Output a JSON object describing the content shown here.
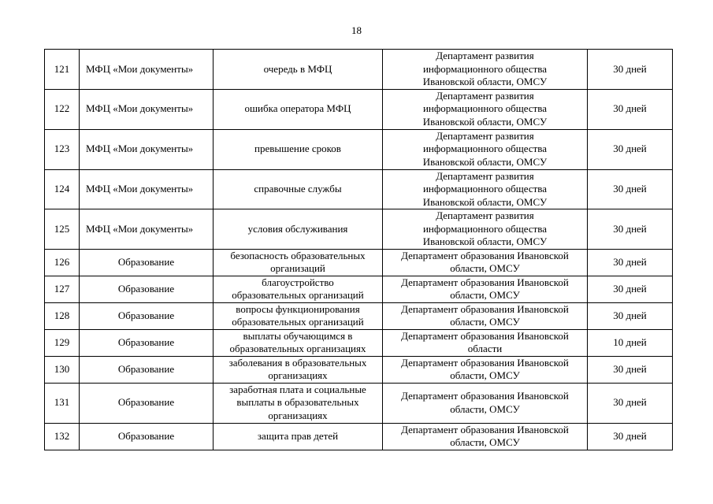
{
  "page_number": "18",
  "table": {
    "rows": [
      [
        "121",
        "МФЦ «Мои документы»",
        "очередь в МФЦ",
        [
          "Департамент развития",
          "информационного общества",
          "Ивановской области, ОМСУ"
        ],
        "30 дней"
      ],
      [
        "122",
        "МФЦ «Мои документы»",
        "ошибка оператора МФЦ",
        [
          "Департамент развития",
          "информационного общества",
          "Ивановской области, ОМСУ"
        ],
        "30 дней"
      ],
      [
        "123",
        "МФЦ «Мои документы»",
        "превышение сроков",
        [
          "Департамент развития",
          "информационного общества",
          "Ивановской области, ОМСУ"
        ],
        "30 дней"
      ],
      [
        "124",
        "МФЦ «Мои документы»",
        "справочные службы",
        [
          "Департамент развития",
          "информационного общества",
          "Ивановской области, ОМСУ"
        ],
        "30 дней"
      ],
      [
        "125",
        "МФЦ «Мои документы»",
        "условия обслуживания",
        [
          "Департамент развития",
          "информационного общества",
          "Ивановской области, ОМСУ"
        ],
        "30 дней"
      ],
      [
        "126",
        "Образование",
        [
          "безопасность образовательных",
          "организаций"
        ],
        [
          "Департамент образования Ивановской",
          "области, ОМСУ"
        ],
        "30 дней"
      ],
      [
        "127",
        "Образование",
        [
          "благоустройство",
          "образовательных организаций"
        ],
        [
          "Департамент образования Ивановской",
          "области, ОМСУ"
        ],
        "30 дней"
      ],
      [
        "128",
        "Образование",
        [
          "вопросы функционирования",
          "образовательных организаций"
        ],
        [
          "Департамент образования Ивановской",
          "области, ОМСУ"
        ],
        "30 дней"
      ],
      [
        "129",
        "Образование",
        [
          "выплаты обучающимся в",
          "образовательных организациях"
        ],
        [
          "Департамент образования Ивановской",
          "области"
        ],
        "10 дней"
      ],
      [
        "130",
        "Образование",
        [
          "заболевания в образовательных",
          "организациях"
        ],
        [
          "Департамент образования Ивановской",
          "области, ОМСУ"
        ],
        "30 дней"
      ],
      [
        "131",
        "Образование",
        [
          "заработная плата и социальные",
          "выплаты в образовательных",
          "организациях"
        ],
        [
          "Департамент образования Ивановской",
          "области, ОМСУ"
        ],
        "30 дней"
      ],
      [
        "132",
        "Образование",
        "защита прав детей",
        [
          "Департамент образования Ивановской",
          "области, ОМСУ"
        ],
        "30 дней"
      ]
    ]
  }
}
